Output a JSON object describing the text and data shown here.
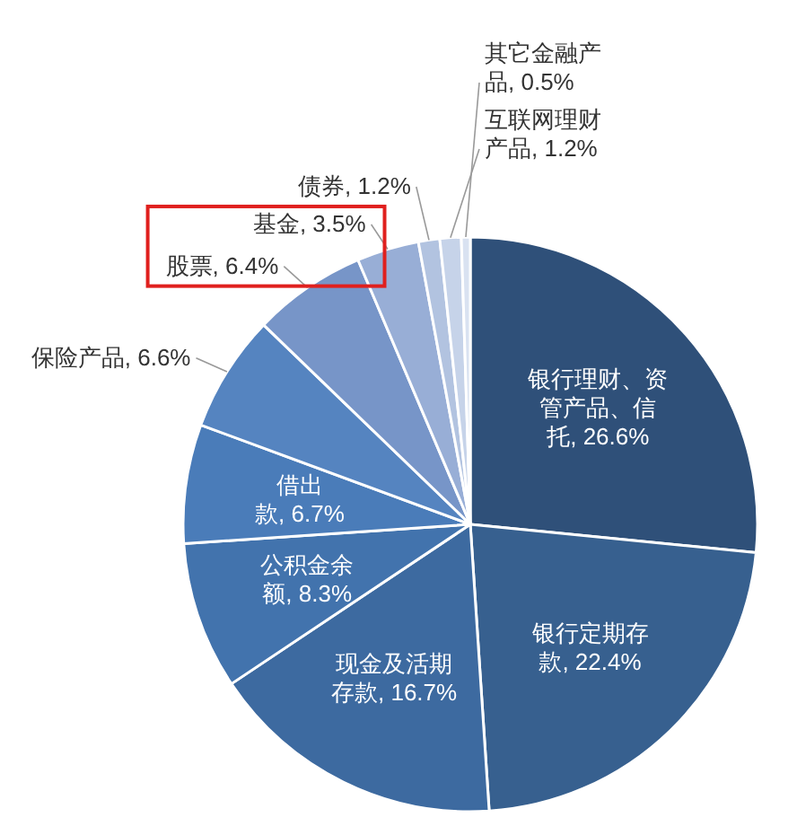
{
  "chart_data": {
    "type": "pie",
    "categories": [
      "银行理财、资管产品、信托",
      "银行定期存款",
      "现金及活期存款",
      "公积金余额",
      "借出款",
      "保险产品",
      "股票",
      "基金",
      "债券",
      "互联网理财产品",
      "其它金融产品"
    ],
    "values": [
      26.6,
      22.4,
      16.7,
      8.3,
      6.7,
      6.6,
      6.4,
      3.5,
      1.2,
      1.2,
      0.5
    ],
    "value_labels": [
      "26.6%",
      "22.4%",
      "16.7%",
      "8.3%",
      "6.7%",
      "6.6%",
      "6.4%",
      "3.5%",
      "1.2%",
      "1.2%",
      "0.5%"
    ],
    "colors": [
      "#2f5079",
      "#37608f",
      "#3d6aa0",
      "#4273ad",
      "#4a7cb9",
      "#5584c0",
      "#7795c8",
      "#98aed6",
      "#b2c3e0",
      "#c6d3e9",
      "#d9e2f1"
    ]
  }
}
